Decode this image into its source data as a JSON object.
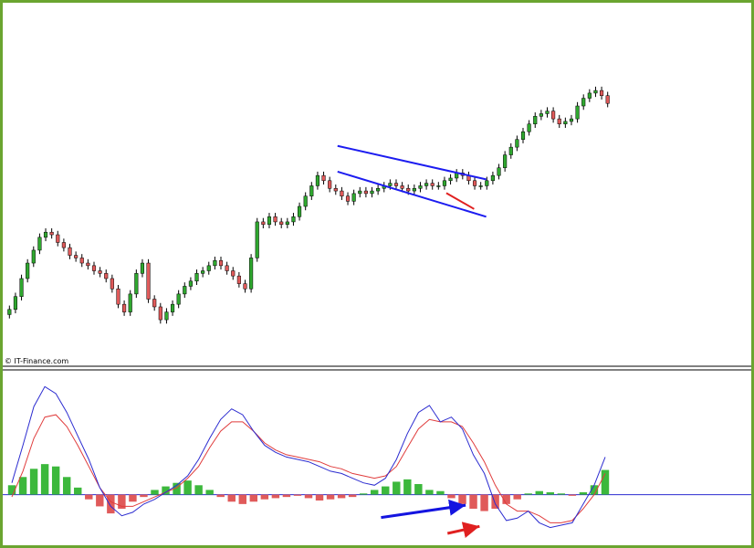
{
  "credit": "© IT-Finance.com",
  "chart_data": [
    {
      "type": "candlestick",
      "panel": "price",
      "grid": false,
      "up_color": "#2fa82f",
      "down_color": "#e05a5a",
      "wick_color": "#000000",
      "ylim": [
        0,
        100
      ],
      "closes": [
        10,
        15,
        22,
        28,
        33,
        38,
        40,
        39,
        36,
        34,
        31,
        30,
        28,
        27,
        25,
        24,
        22,
        18,
        12,
        9,
        16,
        24,
        28,
        14,
        11,
        6,
        9,
        12,
        16,
        19,
        21,
        24,
        25,
        27,
        29,
        27,
        25,
        23,
        20,
        18,
        30,
        44,
        43,
        46,
        44,
        43,
        44,
        46,
        50,
        54,
        58,
        62,
        60,
        57,
        56,
        54,
        52,
        55,
        56,
        55,
        56,
        57,
        58,
        59,
        58,
        57,
        56,
        57,
        58,
        59,
        58,
        58,
        60,
        61,
        63,
        62,
        60,
        58,
        58,
        60,
        62,
        65,
        70,
        73,
        76,
        79,
        82,
        85,
        86,
        87,
        84,
        82,
        83,
        84,
        89,
        92,
        94,
        95,
        93,
        90
      ],
      "overlays": [
        {
          "name": "channel-upper",
          "color": "#1c1cf0",
          "start": [
            0.548,
            73.5
          ],
          "end": [
            0.794,
            60.5
          ]
        },
        {
          "name": "channel-lower",
          "color": "#1c1cf0",
          "start": [
            0.548,
            63.5
          ],
          "end": [
            0.794,
            46.0
          ]
        },
        {
          "name": "low-trend",
          "color": "#e02020",
          "start": [
            0.728,
            55.2
          ],
          "end": [
            0.774,
            49.0
          ]
        }
      ],
      "xlim": [
        0,
        1
      ]
    },
    {
      "type": "macd",
      "panel": "oscillator",
      "grid": false,
      "ylim": [
        -40,
        100
      ],
      "zero_line_color": "#2c2cd0",
      "macd_color": "#2c2cd0",
      "signal_color": "#e03c3c",
      "hist_up_color": "#3cb83c",
      "hist_down_color": "#e05a5a",
      "macd": [
        10,
        42,
        75,
        92,
        86,
        70,
        50,
        30,
        6,
        -10,
        -18,
        -15,
        -8,
        -4,
        2,
        8,
        16,
        30,
        48,
        64,
        73,
        68,
        54,
        42,
        36,
        32,
        30,
        28,
        24,
        20,
        18,
        14,
        10,
        8,
        14,
        30,
        52,
        70,
        76,
        62,
        66,
        56,
        34,
        18,
        -8,
        -22,
        -20,
        -14,
        -24,
        -28,
        -26,
        -24,
        -8,
        8,
        32
      ],
      "signal": [
        -2,
        20,
        48,
        66,
        68,
        58,
        42,
        24,
        6,
        -6,
        -10,
        -10,
        -6,
        -2,
        2,
        6,
        14,
        24,
        40,
        54,
        62,
        62,
        54,
        44,
        38,
        34,
        32,
        30,
        28,
        24,
        22,
        18,
        16,
        14,
        16,
        24,
        40,
        56,
        64,
        62,
        62,
        58,
        44,
        28,
        8,
        -8,
        -14,
        -14,
        -18,
        -24,
        -24,
        -22,
        -12,
        0,
        18
      ],
      "histogram": [
        8,
        15,
        22,
        26,
        24,
        15,
        6,
        -4,
        -10,
        -16,
        -12,
        -6,
        -2,
        4,
        7,
        10,
        12,
        8,
        4,
        -2,
        -6,
        -8,
        -6,
        -4,
        -3,
        -2,
        -1,
        -3,
        -5,
        -4,
        -3,
        -2,
        1,
        4,
        7,
        11,
        13,
        9,
        4,
        3,
        -3,
        -8,
        -12,
        -14,
        -12,
        -8,
        -4,
        1,
        3,
        2,
        1,
        -1,
        2,
        8,
        21
      ],
      "overlays": [
        {
          "name": "macd-rising-trend",
          "color": "#1414e0",
          "start": [
            0.62,
            -19.5
          ],
          "end": [
            0.76,
            -9.0
          ]
        },
        {
          "name": "price-falling-trend",
          "color": "#e02020",
          "start": [
            0.73,
            -33.0
          ],
          "end": [
            0.783,
            -27.0
          ]
        }
      ],
      "xlim": [
        0,
        1
      ]
    }
  ]
}
